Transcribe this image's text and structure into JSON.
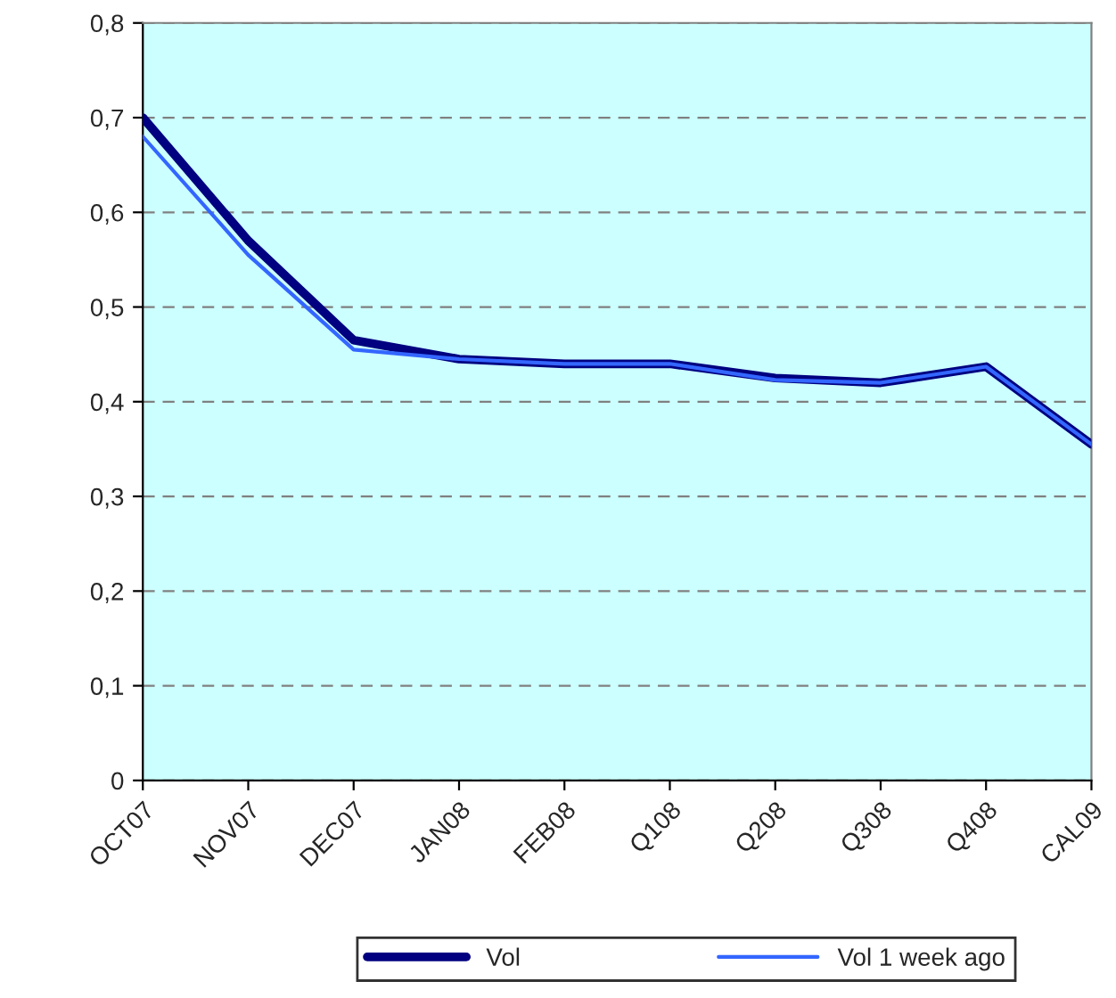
{
  "chart_data": {
    "type": "line",
    "categories": [
      "OCT07",
      "NOV07",
      "DEC07",
      "JAN08",
      "FEB08",
      "Q108",
      "Q208",
      "Q308",
      "Q408",
      "CAL09"
    ],
    "series": [
      {
        "name": "Vol",
        "color": "#000080",
        "values": [
          0.7,
          0.57,
          0.465,
          0.445,
          0.44,
          0.44,
          0.425,
          0.42,
          0.437,
          0.355
        ]
      },
      {
        "name": "Vol 1 week ago",
        "color": "#3366ff",
        "values": [
          0.68,
          0.555,
          0.455,
          0.445,
          0.44,
          0.44,
          0.423,
          0.42,
          0.437,
          0.355
        ]
      }
    ],
    "ylim": [
      0,
      0.8
    ],
    "yticks": [
      {
        "value": 0,
        "label": "0"
      },
      {
        "value": 0.1,
        "label": "0,1"
      },
      {
        "value": 0.2,
        "label": "0,2"
      },
      {
        "value": 0.3,
        "label": "0,3"
      },
      {
        "value": 0.4,
        "label": "0,4"
      },
      {
        "value": 0.5,
        "label": "0,5"
      },
      {
        "value": 0.6,
        "label": "0,6"
      },
      {
        "value": 0.7,
        "label": "0,7"
      },
      {
        "value": 0.8,
        "label": "0,8"
      }
    ],
    "grid": "y",
    "legend": "bottom",
    "marker": "none",
    "line_style": "solid"
  }
}
